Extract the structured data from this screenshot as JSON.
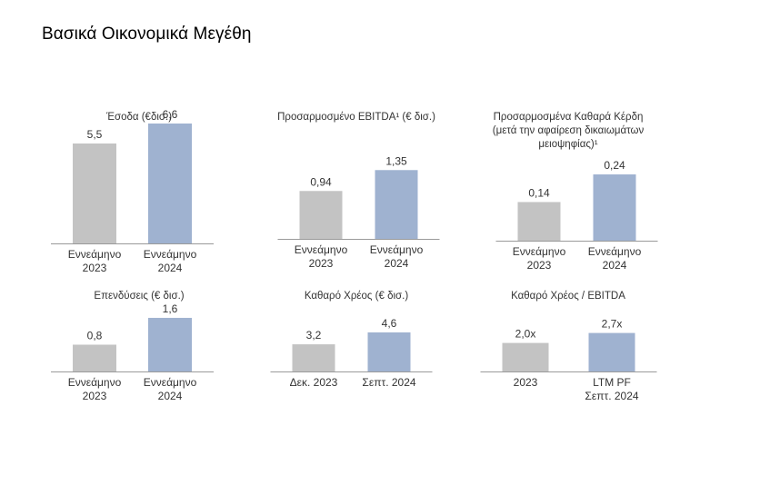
{
  "page": {
    "title": "Βασικά Οικονομικά Μεγέθη"
  },
  "colors": {
    "previous": "#c3c3c3",
    "current": "#9fb2d0",
    "axis": "#9a9a9a",
    "text": "#333333"
  },
  "chart_data": [
    {
      "type": "bar",
      "title": "Έσοδα (€δισ.)",
      "categories": [
        "Εννεάμηνο\n2023",
        "Εννεάμηνο\n2024"
      ],
      "values": [
        5.5,
        6.6
      ],
      "value_labels": [
        "5,5",
        "6,6"
      ],
      "ylim": [
        0,
        9.0
      ]
    },
    {
      "type": "bar",
      "title": "Προσαρμοσμένο EBITDA¹ (€ δισ.)",
      "categories": [
        "Εννεάμηνο\n2023",
        "Εννεάμηνο\n2024"
      ],
      "values": [
        0.94,
        1.35
      ],
      "value_labels": [
        "0,94",
        "1,35"
      ],
      "ylim": [
        0,
        1.9
      ]
    },
    {
      "type": "bar",
      "title": "Προσαρμοσμένα Καθαρά Κέρδη\n(μετά την αφαίρεση δικαιωμάτων\nμειοψηφίας)¹",
      "categories": [
        "Εννεάμηνο\n2023",
        "Εννεάμηνο\n2024"
      ],
      "values": [
        0.14,
        0.24
      ],
      "value_labels": [
        "0,14",
        "0,24"
      ],
      "ylim": [
        0,
        0.34
      ]
    },
    {
      "type": "bar",
      "title": "Επενδύσεις (€ δισ.)",
      "categories": [
        "Εννεάμηνο\n2023",
        "Εννεάμηνο\n2024"
      ],
      "values": [
        0.8,
        1.6
      ],
      "value_labels": [
        "0,8",
        "1,6"
      ],
      "ylim": [
        0,
        2.2
      ]
    },
    {
      "type": "bar",
      "title": "Καθαρό Χρέος (€ δισ.)",
      "categories": [
        "Δεκ. 2023",
        "Σεπτ. 2024"
      ],
      "values": [
        3.2,
        4.6
      ],
      "value_labels": [
        "3,2",
        "4,6"
      ],
      "ylim": [
        0,
        6.1
      ]
    },
    {
      "type": "bar",
      "title": "Καθαρό Χρέος / EBITDA",
      "categories": [
        "2023",
        "LTM PF\nΣεπτ. 2024"
      ],
      "values": [
        2.0,
        2.7
      ],
      "value_labels": [
        "2,0x",
        "2,7x"
      ],
      "ylim": [
        0,
        3.6
      ]
    }
  ]
}
